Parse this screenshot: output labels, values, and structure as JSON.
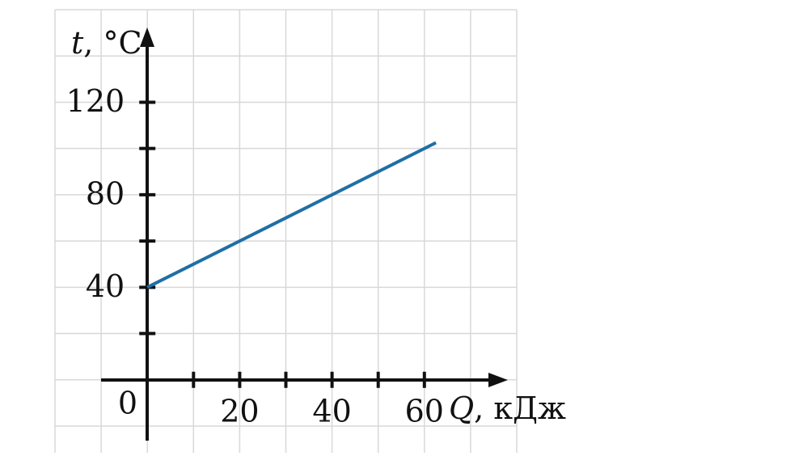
{
  "chart_data": {
    "type": "line",
    "x_label_var": "Q",
    "x_label_unit": ", кДж",
    "y_label_var": "t",
    "y_label_unit": ", °C",
    "origin_label": "0",
    "x": [
      0,
      62.5
    ],
    "series": [
      {
        "color": "#1f6fa5",
        "values": [
          40,
          102.5
        ]
      }
    ],
    "xlim": [
      -20,
      80
    ],
    "ylim": [
      -20,
      160
    ],
    "xticks": [
      20,
      40,
      60
    ],
    "x_minor_ticks": [
      10,
      30,
      50
    ],
    "yticks": [
      40,
      80,
      120
    ],
    "y_minor_ticks": [
      20,
      60,
      100
    ],
    "x_grid": [
      -20,
      -10,
      0,
      10,
      20,
      30,
      40,
      50,
      60,
      70,
      80
    ],
    "y_grid": [
      -20,
      0,
      20,
      40,
      60,
      80,
      100,
      120,
      140,
      160
    ],
    "grid": true
  }
}
